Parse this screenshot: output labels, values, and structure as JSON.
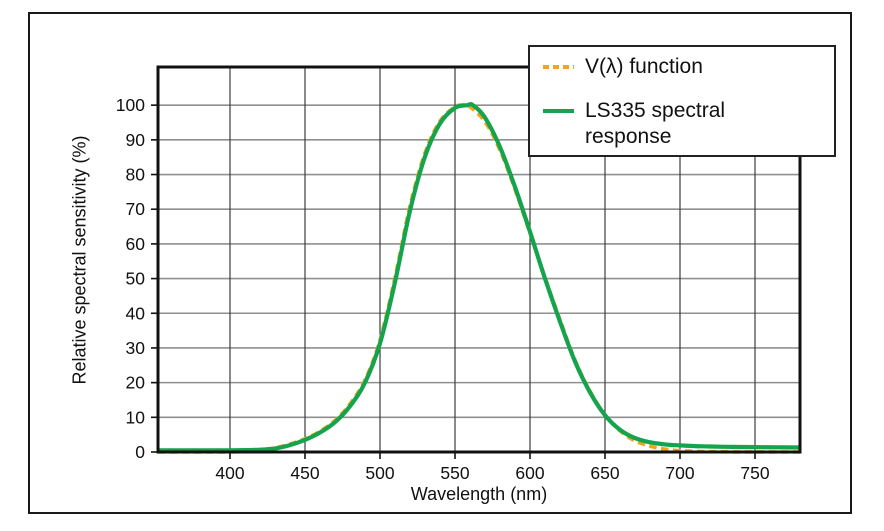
{
  "chart_data": {
    "type": "line",
    "title": "",
    "xlabel": "Wavelength (nm)",
    "ylabel": "Relative spectral sensitivity (%)",
    "xlim": [
      352,
      780
    ],
    "ylim": [
      0,
      111
    ],
    "x_ticks": [
      400,
      450,
      500,
      550,
      600,
      650,
      700,
      750
    ],
    "y_ticks": [
      0,
      10,
      20,
      30,
      40,
      50,
      60,
      70,
      80,
      90,
      100
    ],
    "grid": true,
    "legend_position": "top-right",
    "series": [
      {
        "name": "V(λ) function",
        "line_style": "dashed",
        "color": "#F2A51C",
        "points": [
          [
            352,
            0
          ],
          [
            370,
            0
          ],
          [
            390,
            0.01
          ],
          [
            400,
            0.04
          ],
          [
            410,
            0.12
          ],
          [
            420,
            0.4
          ],
          [
            430,
            1.2
          ],
          [
            440,
            2.3
          ],
          [
            450,
            3.8
          ],
          [
            460,
            6.0
          ],
          [
            470,
            9.1
          ],
          [
            480,
            13.9
          ],
          [
            490,
            20.8
          ],
          [
            500,
            32.3
          ],
          [
            510,
            50.3
          ],
          [
            520,
            71.0
          ],
          [
            530,
            86.2
          ],
          [
            540,
            95.4
          ],
          [
            550,
            99.5
          ],
          [
            555,
            100
          ],
          [
            560,
            99.5
          ],
          [
            570,
            95.2
          ],
          [
            580,
            87.0
          ],
          [
            590,
            75.7
          ],
          [
            600,
            63.1
          ],
          [
            610,
            50.3
          ],
          [
            620,
            38.1
          ],
          [
            630,
            26.5
          ],
          [
            640,
            17.5
          ],
          [
            650,
            10.7
          ],
          [
            660,
            6.1
          ],
          [
            670,
            3.2
          ],
          [
            680,
            1.7
          ],
          [
            690,
            0.8
          ],
          [
            700,
            0.4
          ],
          [
            710,
            0.2
          ],
          [
            720,
            0.1
          ],
          [
            730,
            0.05
          ],
          [
            740,
            0.03
          ],
          [
            750,
            0.02
          ],
          [
            765,
            0.01
          ],
          [
            780,
            0
          ]
        ]
      },
      {
        "name": "LS335 spectral response",
        "line_style": "solid",
        "color": "#14A44D",
        "points": [
          [
            352,
            0.5
          ],
          [
            370,
            0.5
          ],
          [
            390,
            0.5
          ],
          [
            400,
            0.5
          ],
          [
            410,
            0.55
          ],
          [
            420,
            0.65
          ],
          [
            430,
            1.0
          ],
          [
            440,
            2.0
          ],
          [
            450,
            3.5
          ],
          [
            460,
            5.6
          ],
          [
            470,
            8.6
          ],
          [
            480,
            13.2
          ],
          [
            490,
            20.0
          ],
          [
            500,
            31.3
          ],
          [
            510,
            49.0
          ],
          [
            520,
            69.6
          ],
          [
            530,
            85.2
          ],
          [
            540,
            94.7
          ],
          [
            550,
            99.2
          ],
          [
            558,
            100
          ],
          [
            562,
            100
          ],
          [
            570,
            96.4
          ],
          [
            580,
            87.9
          ],
          [
            590,
            76.4
          ],
          [
            600,
            63.5
          ],
          [
            610,
            50.0
          ],
          [
            620,
            37.6
          ],
          [
            630,
            26.1
          ],
          [
            640,
            17.2
          ],
          [
            650,
            10.6
          ],
          [
            660,
            6.4
          ],
          [
            670,
            4.0
          ],
          [
            680,
            2.8
          ],
          [
            690,
            2.2
          ],
          [
            700,
            1.9
          ],
          [
            710,
            1.7
          ],
          [
            720,
            1.6
          ],
          [
            730,
            1.5
          ],
          [
            740,
            1.45
          ],
          [
            750,
            1.4
          ],
          [
            765,
            1.35
          ],
          [
            780,
            1.3
          ]
        ]
      }
    ]
  },
  "colors": {
    "frame": "#111111",
    "h_grid": "#8F8F8F",
    "v_grid": "#3C3C3C",
    "tick": "#111111",
    "text": "#111111"
  }
}
